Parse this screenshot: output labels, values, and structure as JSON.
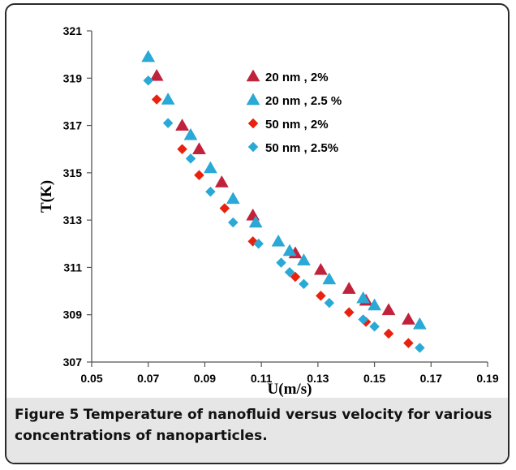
{
  "chart_data": {
    "type": "scatter",
    "title": "",
    "xlabel": "U(m/s)",
    "ylabel": "T(K)",
    "xlim": [
      0.05,
      0.19
    ],
    "ylim": [
      307,
      321
    ],
    "xticks": [
      "0.05",
      "0.07",
      "0.09",
      "0.11",
      "0.13",
      "0.15",
      "0.17",
      "0.19"
    ],
    "yticks": [
      "307",
      "309",
      "311",
      "313",
      "315",
      "317",
      "319",
      "321"
    ],
    "grid": false,
    "legend_position": "top-right inside plot",
    "series": [
      {
        "name": "20 nm , 2%",
        "marker": "triangle",
        "color": "#c0223b",
        "x": [
          0.073,
          0.082,
          0.088,
          0.096,
          0.107,
          0.122,
          0.131,
          0.141,
          0.147,
          0.155,
          0.162
        ],
        "y": [
          319.1,
          317.0,
          316.0,
          314.6,
          313.2,
          311.6,
          310.9,
          310.1,
          309.6,
          309.2,
          308.8
        ]
      },
      {
        "name": "20 nm , 2.5 %",
        "marker": "triangle",
        "color": "#2aa9d6",
        "x": [
          0.07,
          0.077,
          0.085,
          0.092,
          0.1,
          0.108,
          0.116,
          0.12,
          0.125,
          0.134,
          0.146,
          0.15,
          0.166
        ],
        "y": [
          319.9,
          318.1,
          316.6,
          315.2,
          313.9,
          312.9,
          312.1,
          311.7,
          311.3,
          310.5,
          309.7,
          309.4,
          308.6
        ]
      },
      {
        "name": "50 nm , 2%",
        "marker": "diamond",
        "color": "#e8220e",
        "x": [
          0.073,
          0.082,
          0.088,
          0.097,
          0.107,
          0.122,
          0.131,
          0.141,
          0.147,
          0.155,
          0.162
        ],
        "y": [
          318.1,
          316.0,
          314.9,
          313.5,
          312.1,
          310.6,
          309.8,
          309.1,
          308.7,
          308.2,
          307.8
        ]
      },
      {
        "name": "50 nm , 2.5%",
        "marker": "diamond",
        "color": "#2aa9d6",
        "x": [
          0.07,
          0.077,
          0.085,
          0.092,
          0.1,
          0.109,
          0.117,
          0.12,
          0.125,
          0.134,
          0.146,
          0.15,
          0.166
        ],
        "y": [
          318.9,
          317.1,
          315.6,
          314.2,
          312.9,
          312.0,
          311.2,
          310.8,
          310.3,
          309.5,
          308.8,
          308.5,
          307.6
        ]
      }
    ]
  },
  "caption": {
    "label": "Figure 5",
    "text": "Temperature of nanofluid versus velocity for various concentrations of nanoparticles."
  }
}
